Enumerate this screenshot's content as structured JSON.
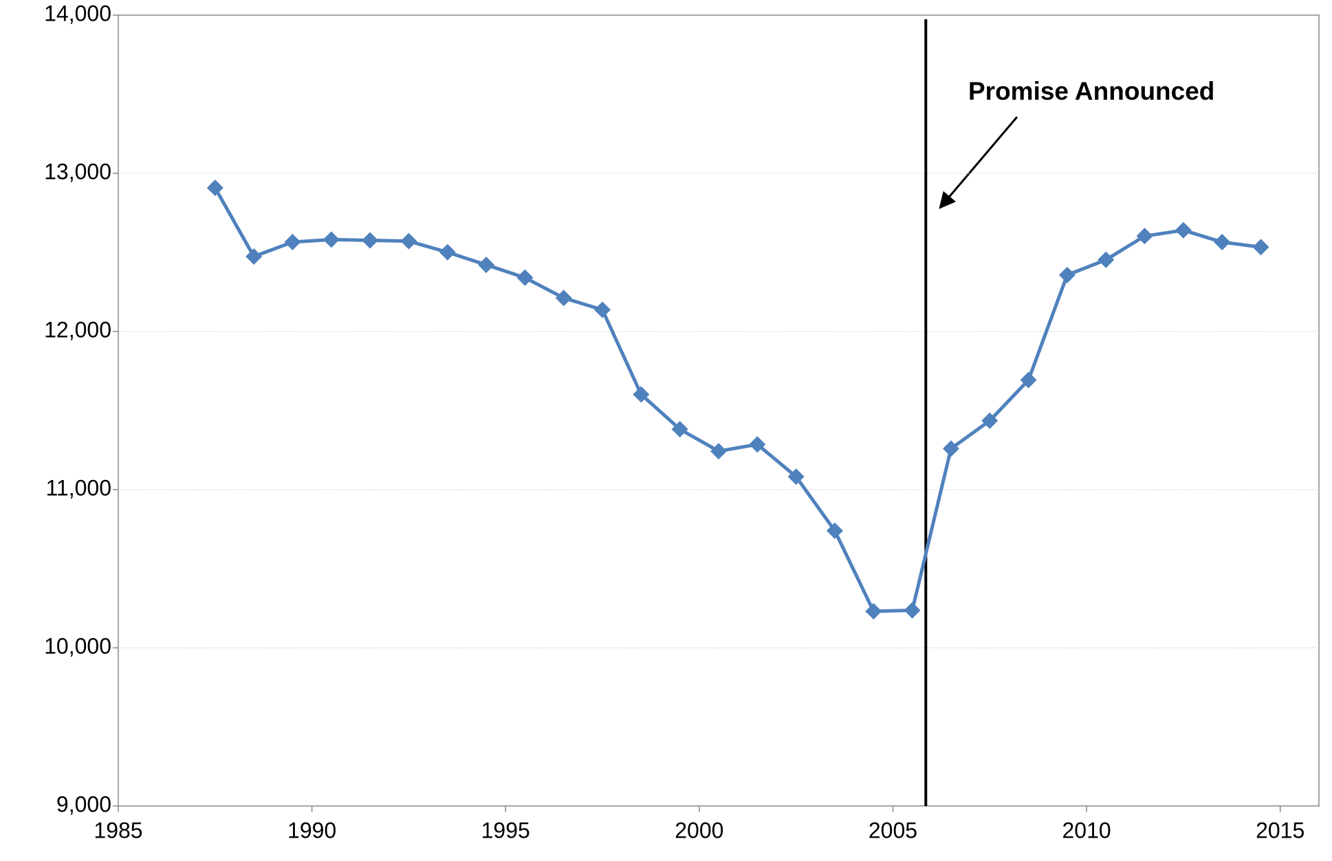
{
  "chart_data": {
    "type": "line",
    "x": [
      1987.5,
      1988.5,
      1989.5,
      1990.5,
      1991.5,
      1992.5,
      1993.5,
      1994.5,
      1995.5,
      1996.5,
      1997.5,
      1998.5,
      1999.5,
      2000.5,
      2001.5,
      2002.5,
      2003.5,
      2004.5,
      2005.5,
      2006.5,
      2007.5,
      2008.5,
      2009.5,
      2010.5,
      2011.5,
      2012.5,
      2013.5,
      2014.5
    ],
    "series": [
      {
        "color": "#4f81bd",
        "values": [
          12908,
          12474,
          12565,
          12581,
          12576,
          12571,
          12501,
          12421,
          12340,
          12212,
          12137,
          11602,
          11382,
          11243,
          11286,
          11082,
          10740,
          10231,
          10237,
          11259,
          11436,
          11693,
          12357,
          12453,
          12603,
          12640,
          12565,
          12533
        ]
      }
    ],
    "xlim": [
      1985,
      2016
    ],
    "xticks": [
      1985,
      1990,
      1995,
      2000,
      2005,
      2010,
      2015
    ],
    "ylim": [
      9000,
      14000
    ],
    "yticks": [
      {
        "value": 9000,
        "label": "9,000"
      },
      {
        "value": 10000,
        "label": "10,000"
      },
      {
        "value": 11000,
        "label": "11,000"
      },
      {
        "value": 12000,
        "label": "12,000"
      },
      {
        "value": 13000,
        "label": "13,000"
      },
      {
        "value": 14000,
        "label": "14,000"
      }
    ],
    "grid": true,
    "annotation": {
      "text": "Promise Announced",
      "x": 2005.85
    }
  }
}
